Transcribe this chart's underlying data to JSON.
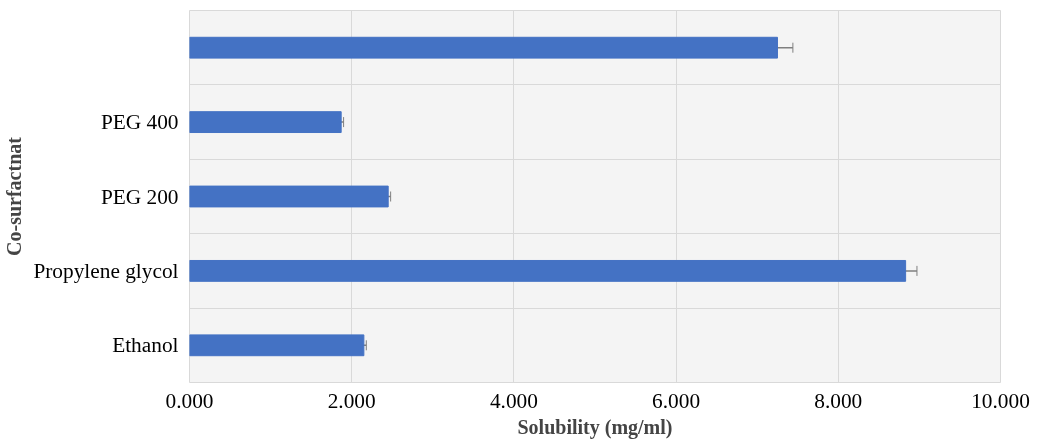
{
  "chart_data": {
    "type": "bar",
    "orientation": "horizontal",
    "xlabel": "Solubility (mg/ml)",
    "ylabel": "Co-surfactnat",
    "categories": [
      null,
      "PEG 400",
      "PEG 200",
      "Propylene glycol",
      "Ethanol"
    ],
    "values": [
      7.25,
      1.87,
      2.45,
      8.83,
      2.15
    ],
    "errors": [
      0.19,
      0.03,
      0.03,
      0.14,
      0.03
    ],
    "color": "#4472c4",
    "xlim": [
      0,
      10
    ],
    "xticks": [
      {
        "value": 0,
        "label": "0.000"
      },
      {
        "value": 2,
        "label": "2.000"
      },
      {
        "value": 4,
        "label": "4.000"
      },
      {
        "value": 6,
        "label": "6.000"
      },
      {
        "value": 8,
        "label": "8.000"
      },
      {
        "value": 10,
        "label": "10.000"
      }
    ],
    "grid": true
  }
}
